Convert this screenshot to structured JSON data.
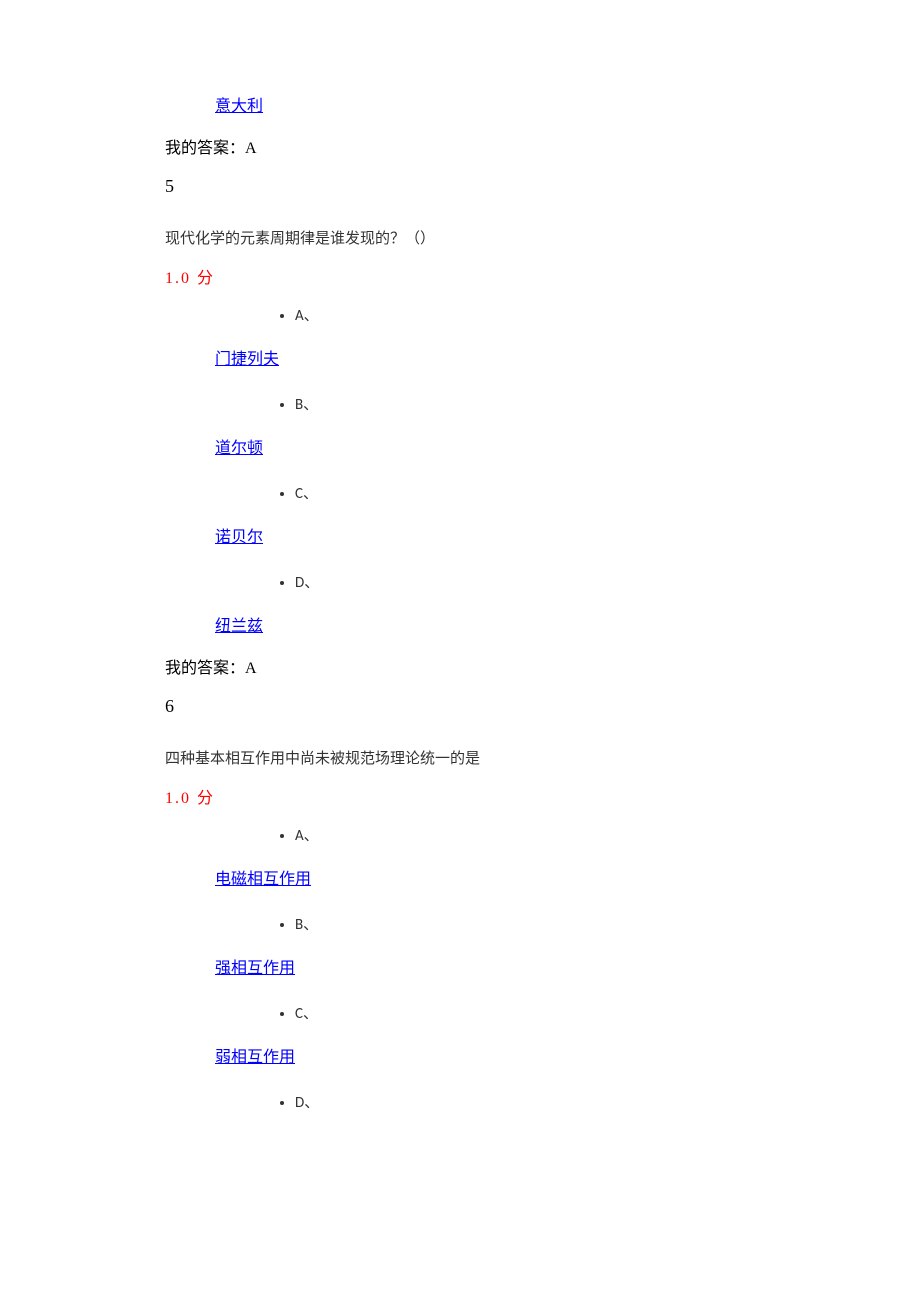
{
  "q4_remainder": {
    "option_d_text": "意大利",
    "my_answer": "我的答案：A"
  },
  "q5": {
    "number": "5",
    "question": "现代化学的元素周期律是谁发现的？（）",
    "score": "1.0  分",
    "options": {
      "a": {
        "label": "A、",
        "text": "门捷列夫"
      },
      "b": {
        "label": "B、",
        "text": "道尔顿"
      },
      "c": {
        "label": "C、",
        "text": "诺贝尔"
      },
      "d": {
        "label": "D、",
        "text": "纽兰兹"
      }
    },
    "my_answer": "我的答案：A"
  },
  "q6": {
    "number": "6",
    "question": "四种基本相互作用中尚未被规范场理论统一的是",
    "score": "1.0  分",
    "options": {
      "a": {
        "label": "A、",
        "text": "电磁相互作用"
      },
      "b": {
        "label": "B、",
        "text": "强相互作用"
      },
      "c": {
        "label": "C、",
        "text": "弱相互作用"
      },
      "d": {
        "label": "D、",
        "text": ""
      }
    }
  },
  "colors": {
    "link": "#0000ff",
    "score": "#ff0000",
    "text": "#000000",
    "background": "#ffffff"
  }
}
